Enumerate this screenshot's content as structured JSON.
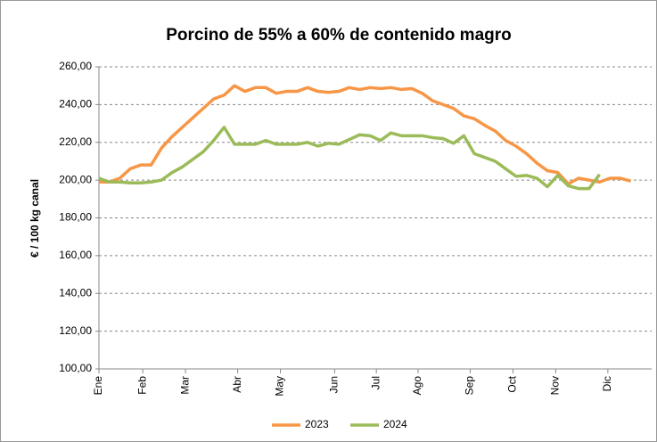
{
  "chart_data": {
    "type": "line",
    "title": "Porcino de 55% a 60% de contenido magro",
    "y_label": "€ / 100 kg canal",
    "x": [
      1,
      2,
      3,
      4,
      5,
      6,
      7,
      8,
      9,
      10,
      11,
      12,
      13,
      14,
      15,
      16,
      17,
      18,
      19,
      20,
      21,
      22,
      23,
      24,
      25,
      26,
      27,
      28,
      29,
      30,
      31,
      32,
      33,
      34,
      35,
      36,
      37,
      38,
      39,
      40,
      41,
      42,
      43,
      44,
      45,
      46,
      47,
      48,
      49,
      50,
      51,
      52
    ],
    "series": [
      {
        "name": "2023",
        "color": "#f79646",
        "values": [
          199,
          199,
          201,
          206,
          208,
          208,
          217,
          223,
          228,
          233,
          238,
          243,
          245,
          250,
          247,
          249,
          249,
          246,
          247,
          247,
          249,
          247,
          246.5,
          247,
          249,
          248,
          249,
          248.5,
          249,
          248,
          248.5,
          246,
          242,
          240,
          238,
          234,
          232.5,
          229,
          226,
          221,
          218,
          214,
          209,
          205,
          204,
          198,
          201,
          200,
          199,
          201,
          201,
          199.5
        ]
      },
      {
        "name": "2024",
        "color": "#9bbb59",
        "values": [
          201,
          199,
          199,
          198.5,
          198.5,
          199,
          200,
          204,
          207,
          211,
          215,
          221,
          228,
          219,
          219,
          219,
          221,
          219,
          219,
          219,
          220,
          218,
          219.5,
          219,
          221.5,
          224,
          223.5,
          221,
          225,
          223.5,
          223.5,
          223.5,
          222.5,
          222,
          219.5,
          223.5,
          214,
          212,
          210,
          206,
          202,
          202.5,
          201,
          196.5,
          202.5,
          197,
          195.5,
          195.5,
          203,
          null,
          null,
          null
        ]
      }
    ],
    "xlim": [
      1,
      54
    ],
    "xticks": [
      {
        "value": 1,
        "label": "Ene"
      },
      {
        "value": 5.2,
        "label": "Feb"
      },
      {
        "value": 9.3,
        "label": "Mar"
      },
      {
        "value": 14.3,
        "label": "Abr"
      },
      {
        "value": 18.4,
        "label": "May"
      },
      {
        "value": 23.6,
        "label": "Jun"
      },
      {
        "value": 27.6,
        "label": "Jul"
      },
      {
        "value": 31.6,
        "label": "Ago"
      },
      {
        "value": 36.6,
        "label": "Sep"
      },
      {
        "value": 40.7,
        "label": "Oct"
      },
      {
        "value": 44.8,
        "label": "Nov"
      },
      {
        "value": 49.8,
        "label": "Dic"
      }
    ],
    "ylim": [
      100,
      260
    ],
    "yticks": [
      {
        "value": 100,
        "label": "100,00"
      },
      {
        "value": 120,
        "label": "120,00"
      },
      {
        "value": 140,
        "label": "140,00"
      },
      {
        "value": 160,
        "label": "160,00"
      },
      {
        "value": 180,
        "label": "180,00"
      },
      {
        "value": 200,
        "label": "200,00"
      },
      {
        "value": 220,
        "label": "220,00"
      },
      {
        "value": 240,
        "label": "240,00"
      },
      {
        "value": 260,
        "label": "260,00"
      }
    ],
    "grid": true
  }
}
